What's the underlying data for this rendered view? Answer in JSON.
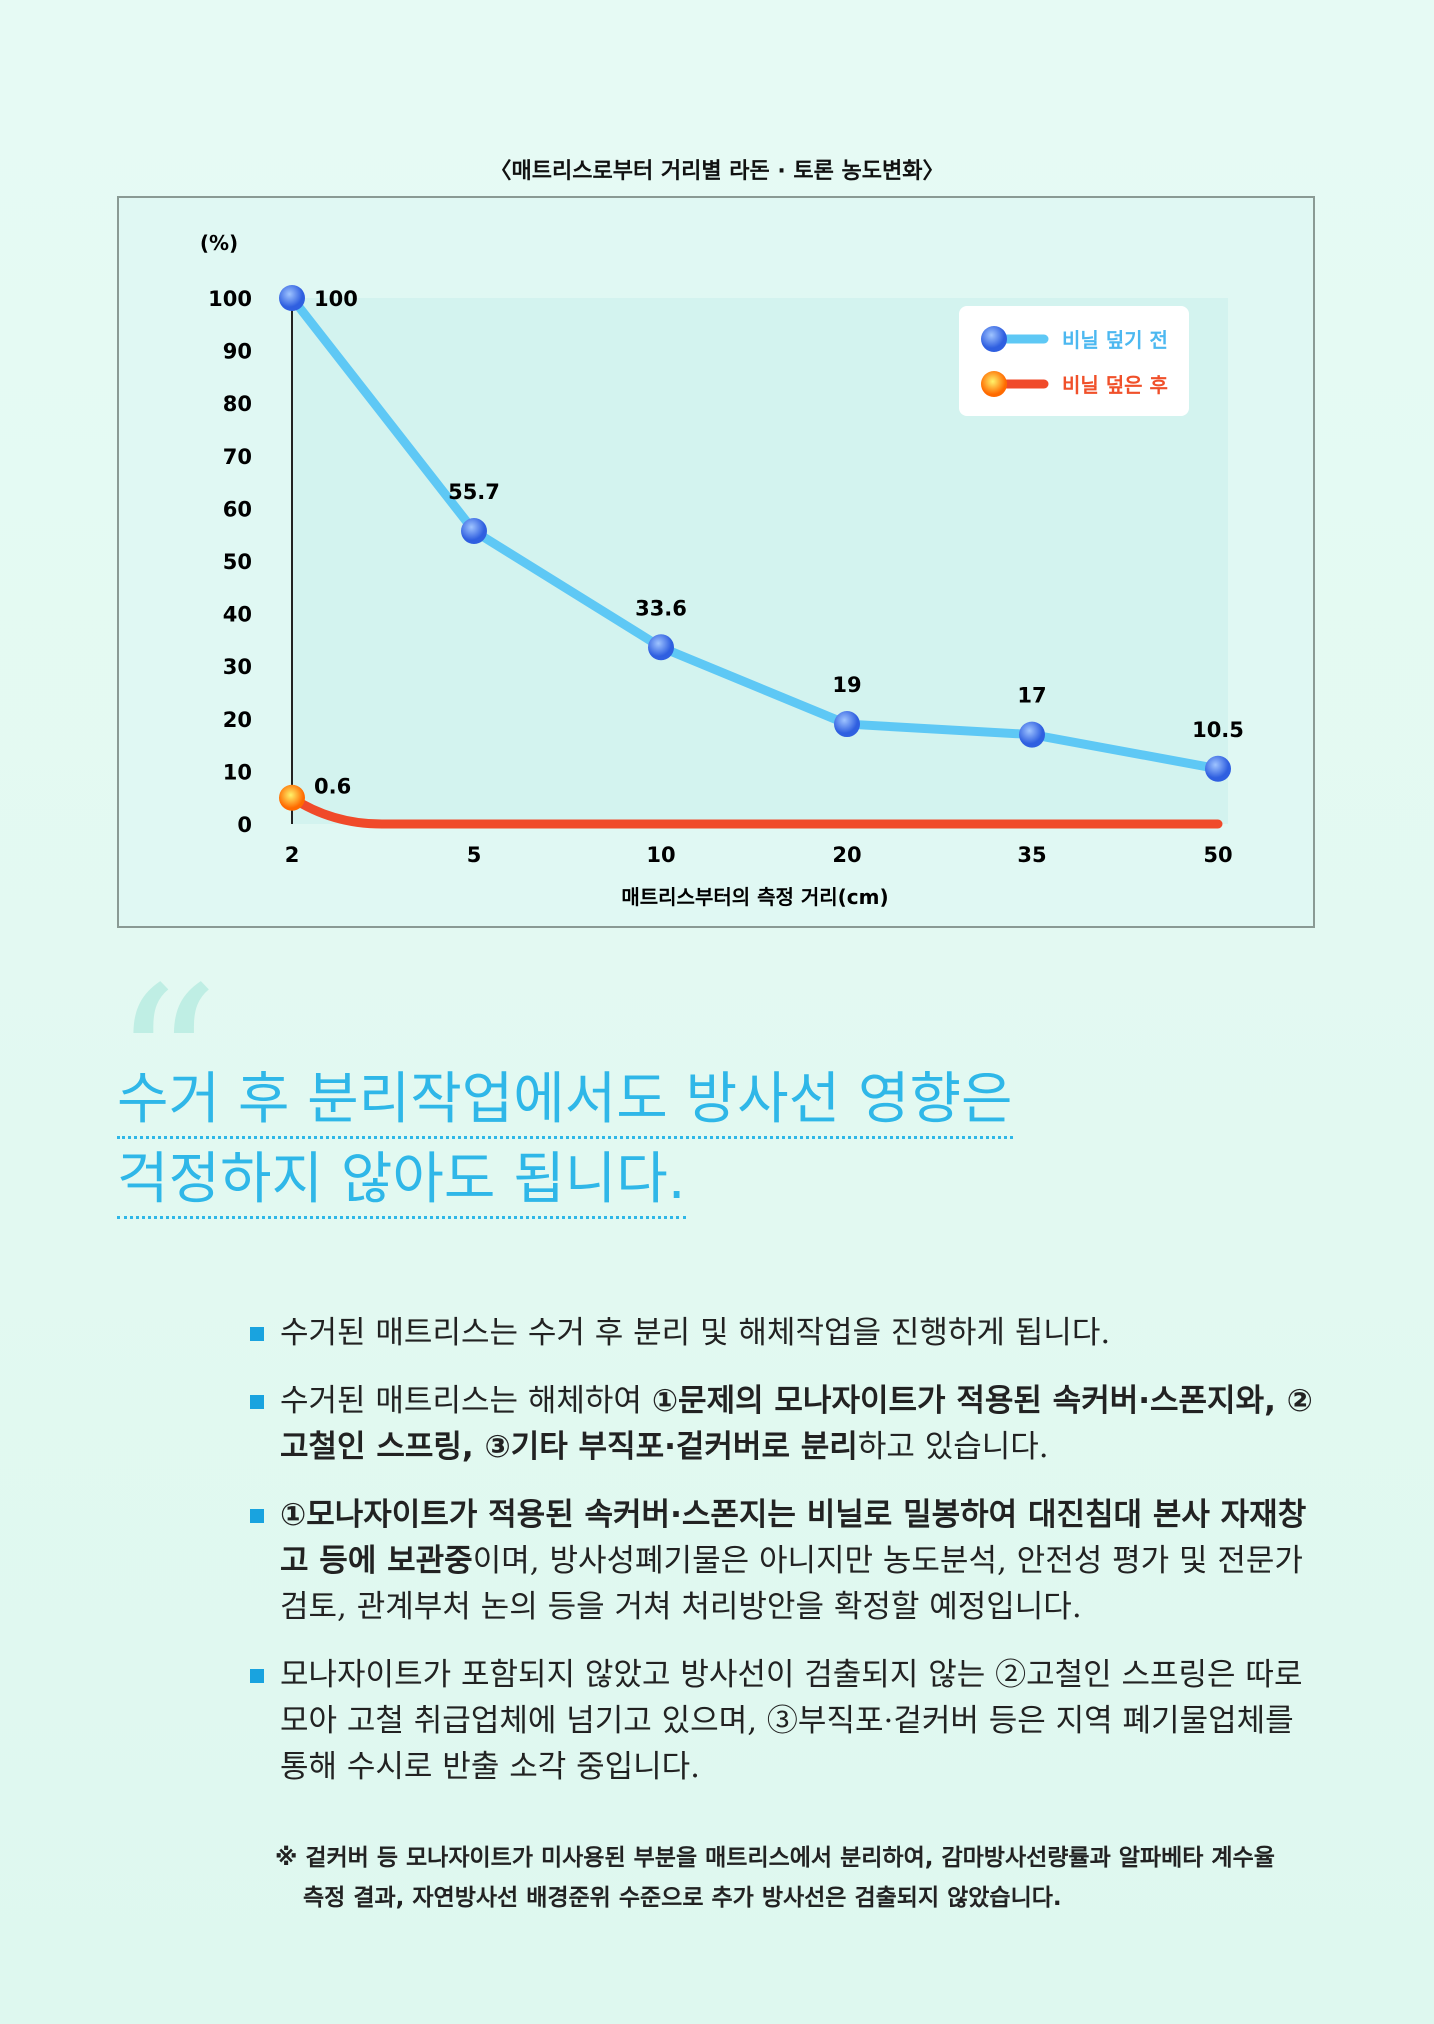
{
  "chart_data": {
    "type": "line",
    "title": "〈매트리스로부터 거리별 라돈 · 토론 농도변화〉",
    "ylabel": "(%)",
    "xlabel": "매트리스부터의 측정 거리(cm)",
    "categories": [
      "2",
      "5",
      "10",
      "20",
      "35",
      "50"
    ],
    "yticks": [
      "0",
      "10",
      "20",
      "30",
      "40",
      "50",
      "60",
      "70",
      "80",
      "90",
      "100"
    ],
    "ylim": [
      0,
      100
    ],
    "legend_position": "top-right",
    "series": [
      {
        "name": "비닐 덮기 전",
        "color": "#5ec8f5",
        "marker": "#3b6ee8",
        "values": [
          100,
          55.7,
          33.6,
          19,
          17,
          10.5
        ],
        "labels": [
          "100",
          "55.7",
          "33.6",
          "19",
          "17",
          "10.5"
        ]
      },
      {
        "name": "비닐 덮은 후",
        "color": "#f04a2a",
        "marker": "#ff9a00",
        "values": [
          0.6,
          0,
          0,
          0,
          0,
          0
        ],
        "labels": [
          "0.6",
          "",
          "",
          "",
          "",
          ""
        ]
      }
    ]
  },
  "headline": {
    "line1": "수거 후 분리작업에서도 방사선 영향은",
    "line2": "걱정하지 않아도 됩니다."
  },
  "bullets": [
    [
      {
        "t": "수거된 매트리스는 수거 후 분리 및 해체작업을 진행하게 됩니다.",
        "b": false
      }
    ],
    [
      {
        "t": "수거된 매트리스는 해체하여 ",
        "b": false
      },
      {
        "t": "①문제의 모나자이트가 적용된 속커버·스폰지와, ②고철인 스프링, ③기타 부직포·겉커버로 분리",
        "b": true
      },
      {
        "t": "하고 있습니다.",
        "b": false
      }
    ],
    [
      {
        "t": "①모나자이트가 적용된 속커버·스폰지는 비닐로 밀봉하여 대진침대 본사 자재창고 등에 보관중",
        "b": true
      },
      {
        "t": "이며, 방사성폐기물은 아니지만 농도분석, 안전성 평가 및 전문가 검토, 관계부처 논의 등을 거쳐 처리방안을 확정할 예정입니다.",
        "b": false
      }
    ],
    [
      {
        "t": "모나자이트가 포함되지 않았고 방사선이 검출되지 않는 ②고철인 스프링은 따로 모아 고철 취급업체에 넘기고 있으며, ③부직포·겉커버 등은 지역 폐기물업체를 통해 수시로 반출 소각 중입니다.",
        "b": false
      }
    ]
  ],
  "note": {
    "line1": "※ 겉커버 등 모나자이트가 미사용된 부분을 매트리스에서 분리하여, 감마방사선량률과 알파베타 계수율",
    "line2": "측정 결과, 자연방사선 배경준위 수준으로 추가 방사선은 검출되지 않았습니다."
  }
}
